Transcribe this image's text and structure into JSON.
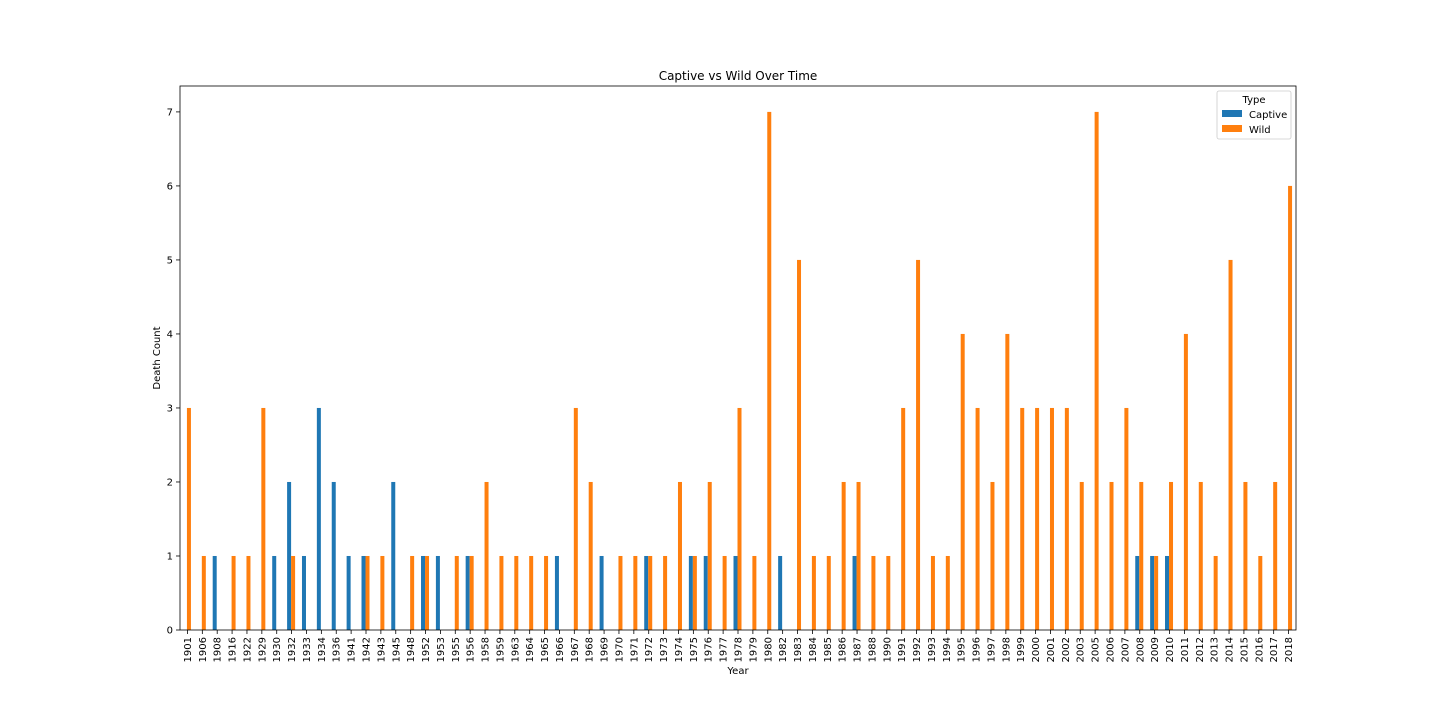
{
  "chart_data": {
    "type": "bar",
    "title": "Captive vs Wild Over Time",
    "xlabel": "Year",
    "ylabel": "Death Count",
    "ylim": [
      0,
      7.35
    ],
    "yticks": [
      0,
      1,
      2,
      3,
      4,
      5,
      6,
      7
    ],
    "grid": false,
    "legend": {
      "title": "Type",
      "placement": "top-right"
    },
    "categories": [
      "1901",
      "1906",
      "1908",
      "1916",
      "1922",
      "1929",
      "1930",
      "1932",
      "1933",
      "1934",
      "1936",
      "1941",
      "1942",
      "1943",
      "1945",
      "1948",
      "1952",
      "1953",
      "1955",
      "1956",
      "1958",
      "1959",
      "1963",
      "1964",
      "1965",
      "1966",
      "1967",
      "1968",
      "1969",
      "1970",
      "1971",
      "1972",
      "1973",
      "1974",
      "1975",
      "1976",
      "1977",
      "1978",
      "1979",
      "1980",
      "1982",
      "1983",
      "1984",
      "1985",
      "1986",
      "1987",
      "1988",
      "1990",
      "1991",
      "1992",
      "1993",
      "1994",
      "1995",
      "1996",
      "1997",
      "1998",
      "1999",
      "2000",
      "2001",
      "2002",
      "2003",
      "2005",
      "2006",
      "2007",
      "2008",
      "2009",
      "2010",
      "2011",
      "2012",
      "2013",
      "2014",
      "2015",
      "2016",
      "2017",
      "2018"
    ],
    "series": [
      {
        "name": "Captive",
        "color": "#1f77b4",
        "values": [
          0,
          0,
          1,
          0,
          0,
          0,
          1,
          2,
          1,
          3,
          2,
          1,
          1,
          0,
          2,
          0,
          1,
          1,
          0,
          1,
          0,
          0,
          0,
          0,
          0,
          1,
          0,
          0,
          1,
          0,
          0,
          1,
          0,
          0,
          1,
          1,
          0,
          1,
          0,
          0,
          1,
          0,
          0,
          0,
          0,
          1,
          0,
          0,
          0,
          0,
          0,
          0,
          0,
          0,
          0,
          0,
          0,
          0,
          0,
          0,
          0,
          0,
          0,
          0,
          1,
          1,
          1,
          0,
          0,
          0,
          0,
          0,
          0,
          0,
          0
        ]
      },
      {
        "name": "Wild",
        "color": "#ff7f0e",
        "values": [
          3,
          1,
          0,
          1,
          1,
          3,
          0,
          1,
          0,
          0,
          0,
          0,
          1,
          1,
          0,
          1,
          1,
          0,
          1,
          1,
          2,
          1,
          1,
          1,
          1,
          0,
          3,
          2,
          0,
          1,
          1,
          1,
          1,
          2,
          1,
          2,
          1,
          3,
          1,
          7,
          0,
          5,
          1,
          1,
          2,
          2,
          1,
          1,
          3,
          5,
          1,
          1,
          4,
          3,
          2,
          4,
          3,
          3,
          3,
          3,
          2,
          7,
          2,
          3,
          2,
          1,
          2,
          4,
          2,
          1,
          5,
          2,
          1,
          2,
          6
        ]
      }
    ]
  }
}
